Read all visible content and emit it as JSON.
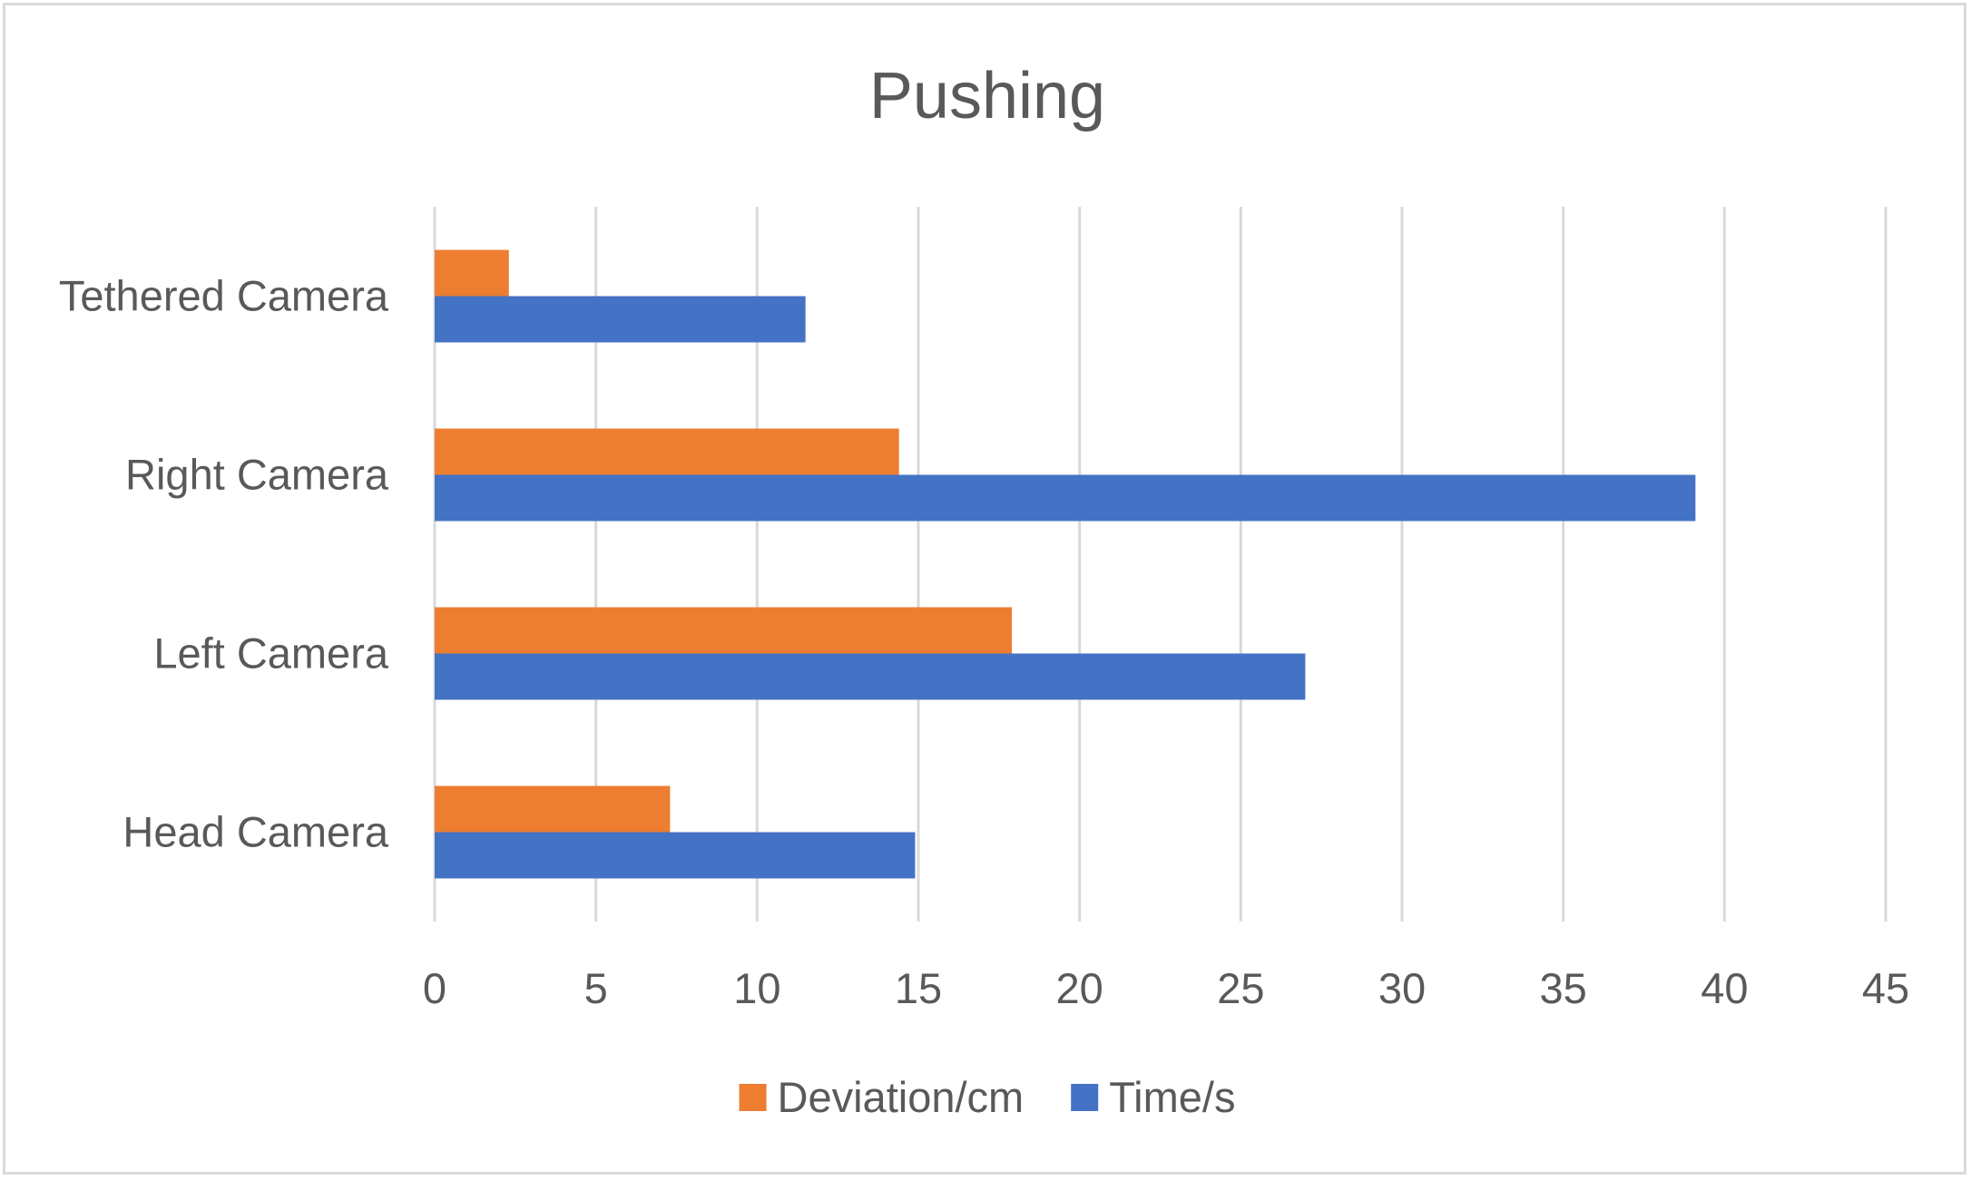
{
  "chart_data": {
    "type": "bar",
    "orientation": "horizontal",
    "title": "Pushing",
    "xlabel": "",
    "ylabel": "",
    "categories": [
      "Tethered Camera",
      "Right Camera",
      "Left Camera",
      "Head Camera"
    ],
    "series": [
      {
        "name": "Deviation/cm",
        "color": "#ED7D31",
        "values": [
          2.3,
          14.4,
          17.9,
          7.3
        ]
      },
      {
        "name": "Time/s",
        "color": "#4472C4",
        "values": [
          11.5,
          39.1,
          27.0,
          14.9
        ]
      }
    ],
    "xlim": [
      0,
      45
    ],
    "xticks": [
      0,
      5,
      10,
      15,
      20,
      25,
      30,
      35,
      40,
      45
    ],
    "grid": "vertical",
    "legend_position": "bottom"
  }
}
